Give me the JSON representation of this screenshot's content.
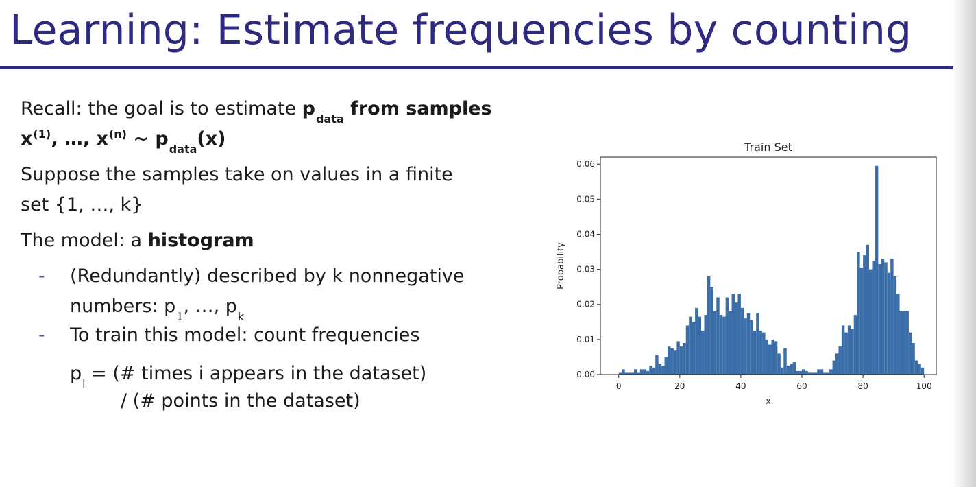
{
  "slide": {
    "title": "Learning: Estimate frequencies by counting",
    "recall_prefix": "Recall: the goal is to estimate ",
    "p_letter": "p",
    "data_sub": "data",
    "from_samples": " from samples",
    "x_letter": "x",
    "sup_1": "(1)",
    "ellipsis_comma": ", …, ",
    "sup_n": "(n)",
    "tilde": " ~ ",
    "paren_x": "(x)",
    "suppose_1": "Suppose the samples take on values in a finite",
    "suppose_2": "set {1, …, k}",
    "model_prefix": "The model: a ",
    "model_bold": "histogram",
    "dash": "-",
    "bullet1_1": "(Redundantly) described by k nonnegative",
    "bullet1_2a": "numbers: p",
    "sub_1": "1",
    "bullet1_2b": ", …, p",
    "sub_k": "k",
    "bullet2": "To train this model: count frequencies",
    "formula_p": "p",
    "sub_i": "i",
    "formula_1": " = (# times i appears in the dataset)",
    "formula_2": "/ (# points in the dataset)"
  },
  "chart_data": {
    "type": "bar",
    "title": "Train Set",
    "xlabel": "x",
    "ylabel": "Probability",
    "xlim": [
      -6,
      104
    ],
    "ylim": [
      0,
      0.062
    ],
    "xticks": [
      0,
      20,
      40,
      60,
      80,
      100
    ],
    "yticks": [
      "0.00",
      "0.01",
      "0.02",
      "0.03",
      "0.04",
      "0.05",
      "0.06"
    ],
    "bar_color": "#3b6ea8",
    "x": [
      0,
      1,
      2,
      3,
      4,
      5,
      6,
      7,
      8,
      9,
      10,
      11,
      12,
      13,
      14,
      15,
      16,
      17,
      18,
      19,
      20,
      21,
      22,
      23,
      24,
      25,
      26,
      27,
      28,
      29,
      30,
      31,
      32,
      33,
      34,
      35,
      36,
      37,
      38,
      39,
      40,
      41,
      42,
      43,
      44,
      45,
      46,
      47,
      48,
      49,
      50,
      51,
      52,
      53,
      54,
      55,
      56,
      57,
      58,
      59,
      60,
      61,
      62,
      63,
      64,
      65,
      66,
      67,
      68,
      69,
      70,
      71,
      72,
      73,
      74,
      75,
      76,
      77,
      78,
      79,
      80,
      81,
      82,
      83,
      84,
      85,
      86,
      87,
      88,
      89,
      90,
      91,
      92,
      93,
      94,
      95,
      96,
      97,
      98,
      99
    ],
    "values": [
      0.0005,
      0.0015,
      0.0005,
      0.0005,
      0.0005,
      0.0015,
      0.0005,
      0.0015,
      0.0015,
      0.001,
      0.0025,
      0.002,
      0.0055,
      0.003,
      0.0025,
      0.005,
      0.008,
      0.0075,
      0.007,
      0.0095,
      0.008,
      0.009,
      0.014,
      0.0165,
      0.015,
      0.019,
      0.0165,
      0.0125,
      0.017,
      0.028,
      0.025,
      0.018,
      0.022,
      0.017,
      0.0165,
      0.022,
      0.018,
      0.023,
      0.0205,
      0.023,
      0.019,
      0.016,
      0.0175,
      0.0155,
      0.0125,
      0.0175,
      0.0125,
      0.012,
      0.01,
      0.0085,
      0.01,
      0.0095,
      0.006,
      0.002,
      0.0075,
      0.0025,
      0.003,
      0.0035,
      0.001,
      0.001,
      0.0015,
      0.001,
      0.0005,
      0.0005,
      0.0005,
      0.0015,
      0.0015,
      0.0005,
      0.0005,
      0.0015,
      0.004,
      0.006,
      0.008,
      0.014,
      0.012,
      0.014,
      0.013,
      0.017,
      0.035,
      0.0305,
      0.034,
      0.037,
      0.03,
      0.0325,
      0.0595,
      0.0315,
      0.033,
      0.032,
      0.029,
      0.033,
      0.028,
      0.023,
      0.018,
      0.018,
      0.018,
      0.012,
      0.009,
      0.004,
      0.003,
      0.002
    ]
  }
}
